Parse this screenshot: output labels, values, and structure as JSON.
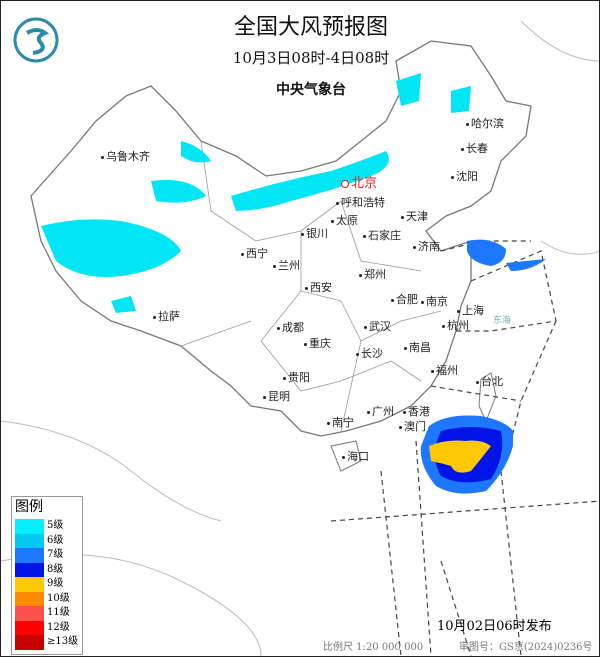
{
  "title": "全国大风预报图",
  "period": "10月3日08时-4日08时",
  "issuer": "中央气象台",
  "logo": "cma-logo",
  "capital": "北京",
  "cities": [
    "乌鲁木齐",
    "哈尔滨",
    "长春",
    "沈阳",
    "呼和浩特",
    "天津",
    "银川",
    "太原",
    "石家庄",
    "济南",
    "西宁",
    "兰州",
    "郑州",
    "西安",
    "合肥",
    "南京",
    "上海",
    "拉萨",
    "成都",
    "武汉",
    "杭州",
    "重庆",
    "长沙",
    "南昌",
    "福州",
    "台北",
    "贵阳",
    "昆明",
    "南宁",
    "广州",
    "香港",
    "澳门",
    "海口"
  ],
  "seas": [
    "东海"
  ],
  "legend": {
    "title": "图例",
    "items": [
      {
        "label": "5级",
        "color": "#00f0ff"
      },
      {
        "label": "6级",
        "color": "#00c8f0"
      },
      {
        "label": "7级",
        "color": "#1e78ff"
      },
      {
        "label": "8级",
        "color": "#0014e6"
      },
      {
        "label": "9级",
        "color": "#ffc800"
      },
      {
        "label": "10级",
        "color": "#ff8c00"
      },
      {
        "label": "11级",
        "color": "#ff5050"
      },
      {
        "label": "12级",
        "color": "#ff0000"
      },
      {
        "label": "≥13级",
        "color": "#c80000"
      }
    ]
  },
  "issued": "10月02日06时发布",
  "scale": "比例尺 1:20 000 000",
  "review_no": "审图号：GS京(2024)0236号"
}
